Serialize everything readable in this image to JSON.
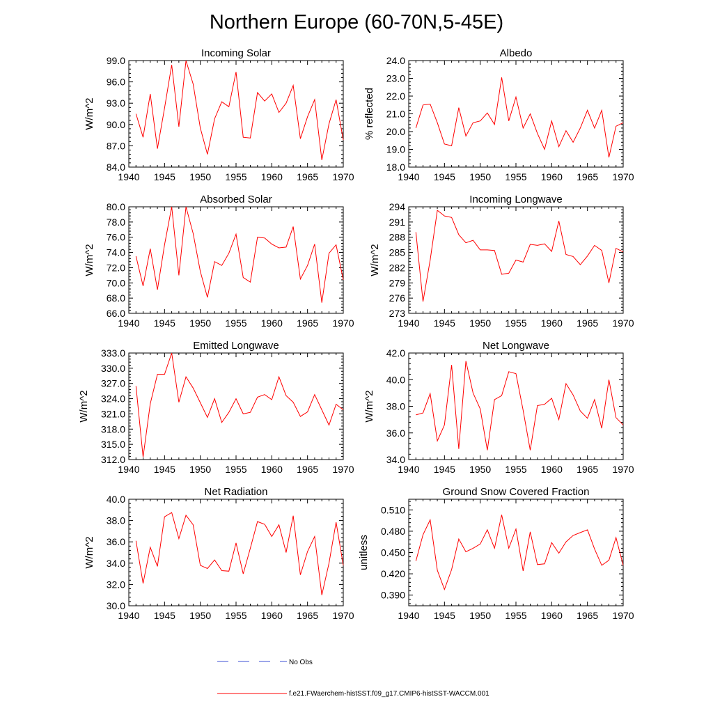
{
  "figure_title": "Northern Europe (60-70N,5-45E)",
  "legend": {
    "no_obs_label": "No Obs",
    "no_obs_color": "#3b4fd6",
    "model_label": "f.e21.FWaerchem-histSST.f09_g17.CMIP6-histSST-WACCM.001",
    "model_color": "#ff0000"
  },
  "chart_data": [
    {
      "type": "line",
      "title": "Incoming Solar",
      "ylabel": "W/m^2",
      "xlabel": "",
      "xlim": [
        1940,
        1970
      ],
      "ylim": [
        84,
        99
      ],
      "x_ticks": [
        "1940",
        "1945",
        "1950",
        "1955",
        "1960",
        "1965",
        "1970"
      ],
      "y_ticks": [
        "84.0",
        "87.0",
        "90.0",
        "93.0",
        "96.0",
        "99.0"
      ],
      "x": [
        1941,
        1942,
        1943,
        1944,
        1945,
        1946,
        1947,
        1948,
        1949,
        1950,
        1951,
        1952,
        1953,
        1954,
        1955,
        1956,
        1957,
        1958,
        1959,
        1960,
        1961,
        1962,
        1963,
        1964,
        1965,
        1966,
        1967,
        1968,
        1969,
        1970
      ],
      "series": [
        {
          "values": [
            91.5,
            88.2,
            94.3,
            86.6,
            92.3,
            98.4,
            89.7,
            99.0,
            95.7,
            89.5,
            85.8,
            90.8,
            93.2,
            92.5,
            97.4,
            88.2,
            88.1,
            94.5,
            93.3,
            94.3,
            91.7,
            93.0,
            95.5,
            88.0,
            91.1,
            93.5,
            85.0,
            90.1,
            93.5,
            87.8
          ]
        }
      ]
    },
    {
      "type": "line",
      "title": "Albedo",
      "ylabel": "% reflected",
      "xlabel": "",
      "xlim": [
        1940,
        1970
      ],
      "ylim": [
        18,
        24
      ],
      "x_ticks": [
        "1940",
        "1945",
        "1950",
        "1955",
        "1960",
        "1965",
        "1970"
      ],
      "y_ticks": [
        "18.0",
        "19.0",
        "20.0",
        "21.0",
        "22.0",
        "23.0",
        "24.0"
      ],
      "x": [
        1941,
        1942,
        1943,
        1944,
        1945,
        1946,
        1947,
        1948,
        1949,
        1950,
        1951,
        1952,
        1953,
        1954,
        1955,
        1956,
        1957,
        1958,
        1959,
        1960,
        1961,
        1962,
        1963,
        1964,
        1965,
        1966,
        1967,
        1968,
        1969,
        1970
      ],
      "series": [
        {
          "values": [
            20.2,
            21.5,
            21.55,
            20.5,
            19.3,
            19.2,
            21.35,
            19.75,
            20.5,
            20.6,
            21.05,
            20.4,
            23.05,
            20.6,
            21.95,
            20.2,
            21.0,
            19.9,
            19.0,
            20.6,
            19.15,
            20.05,
            19.4,
            20.2,
            21.2,
            20.2,
            21.2,
            18.55,
            20.3,
            20.5
          ]
        }
      ]
    },
    {
      "type": "line",
      "title": "Absorbed Solar",
      "ylabel": "W/m^2",
      "xlabel": "",
      "xlim": [
        1940,
        1970
      ],
      "ylim": [
        66,
        80
      ],
      "x_ticks": [
        "1940",
        "1945",
        "1950",
        "1955",
        "1960",
        "1965",
        "1970"
      ],
      "y_ticks": [
        "66.0",
        "68.0",
        "70.0",
        "72.0",
        "74.0",
        "76.0",
        "78.0",
        "80.0"
      ],
      "x": [
        1941,
        1942,
        1943,
        1944,
        1945,
        1946,
        1947,
        1948,
        1949,
        1950,
        1951,
        1952,
        1953,
        1954,
        1955,
        1956,
        1957,
        1958,
        1959,
        1960,
        1961,
        1962,
        1963,
        1964,
        1965,
        1966,
        1967,
        1968,
        1969,
        1970
      ],
      "series": [
        {
          "values": [
            73.5,
            69.6,
            74.5,
            69.1,
            75.0,
            80.0,
            71.0,
            80.0,
            76.5,
            71.5,
            68.1,
            72.8,
            72.3,
            73.9,
            76.4,
            70.7,
            70.1,
            76.0,
            75.9,
            75.1,
            74.6,
            74.7,
            77.4,
            70.5,
            72.3,
            75.1,
            67.4,
            73.9,
            75.0,
            70.4
          ]
        }
      ]
    },
    {
      "type": "line",
      "title": "Incoming Longwave",
      "ylabel": "W/m^2",
      "xlabel": "",
      "xlim": [
        1940,
        1970
      ],
      "ylim": [
        273,
        294
      ],
      "x_ticks": [
        "1940",
        "1945",
        "1950",
        "1955",
        "1960",
        "1965",
        "1970"
      ],
      "y_ticks": [
        "273",
        "276",
        "279",
        "282",
        "285",
        "288",
        "291",
        "294"
      ],
      "x": [
        1941,
        1942,
        1943,
        1944,
        1945,
        1946,
        1947,
        1948,
        1949,
        1950,
        1951,
        1952,
        1953,
        1954,
        1955,
        1956,
        1957,
        1958,
        1959,
        1960,
        1961,
        1962,
        1963,
        1964,
        1965,
        1966,
        1967,
        1968,
        1969,
        1970
      ],
      "series": [
        {
          "values": [
            289.0,
            275.3,
            283.5,
            293.3,
            292.2,
            291.9,
            288.5,
            286.9,
            287.4,
            285.5,
            285.5,
            285.4,
            280.7,
            280.9,
            283.5,
            283.1,
            286.6,
            286.4,
            286.7,
            285.2,
            291.2,
            284.6,
            284.2,
            282.6,
            284.3,
            286.4,
            285.4,
            279.0,
            285.8,
            285.1
          ]
        }
      ]
    },
    {
      "type": "line",
      "title": "Emitted Longwave",
      "ylabel": "W/m^2",
      "xlabel": "",
      "xlim": [
        1940,
        1970
      ],
      "ylim": [
        312,
        333
      ],
      "x_ticks": [
        "1940",
        "1945",
        "1950",
        "1955",
        "1960",
        "1965",
        "1970"
      ],
      "y_ticks": [
        "312.0",
        "315.0",
        "318.0",
        "321.0",
        "324.0",
        "327.0",
        "330.0",
        "333.0"
      ],
      "x": [
        1941,
        1942,
        1943,
        1944,
        1945,
        1946,
        1947,
        1948,
        1949,
        1950,
        1951,
        1952,
        1953,
        1954,
        1955,
        1956,
        1957,
        1958,
        1959,
        1960,
        1961,
        1962,
        1963,
        1964,
        1965,
        1966,
        1967,
        1968,
        1969,
        1970
      ],
      "series": [
        {
          "values": [
            326.5,
            312.5,
            323.0,
            328.8,
            328.8,
            333.0,
            323.3,
            328.3,
            326.1,
            323.2,
            320.3,
            324.0,
            319.3,
            321.3,
            324.0,
            321.0,
            321.3,
            324.3,
            324.8,
            323.8,
            328.3,
            324.6,
            323.3,
            320.5,
            321.4,
            324.8,
            321.8,
            318.8,
            322.9,
            321.8
          ]
        }
      ]
    },
    {
      "type": "line",
      "title": "Net Longwave",
      "ylabel": "W/m^2",
      "xlabel": "",
      "xlim": [
        1940,
        1970
      ],
      "ylim": [
        34,
        42
      ],
      "x_ticks": [
        "1940",
        "1945",
        "1950",
        "1955",
        "1960",
        "1965",
        "1970"
      ],
      "y_ticks": [
        "34.0",
        "36.0",
        "38.0",
        "40.0",
        "42.0"
      ],
      "x": [
        1941,
        1942,
        1943,
        1944,
        1945,
        1946,
        1947,
        1948,
        1949,
        1950,
        1951,
        1952,
        1953,
        1954,
        1955,
        1956,
        1957,
        1958,
        1959,
        1960,
        1961,
        1962,
        1963,
        1964,
        1965,
        1966,
        1967,
        1968,
        1969,
        1970
      ],
      "series": [
        {
          "values": [
            37.35,
            37.5,
            38.95,
            35.4,
            36.6,
            41.1,
            34.8,
            41.4,
            39.0,
            37.8,
            34.7,
            38.5,
            38.8,
            40.6,
            40.45,
            37.7,
            34.7,
            38.05,
            38.15,
            38.6,
            37.0,
            39.7,
            38.85,
            37.65,
            37.1,
            38.5,
            36.35,
            40.0,
            37.15,
            36.6
          ]
        }
      ]
    },
    {
      "type": "line",
      "title": "Net Radiation",
      "ylabel": "W/m^2",
      "xlabel": "",
      "xlim": [
        1940,
        1970
      ],
      "ylim": [
        30,
        40
      ],
      "x_ticks": [
        "1940",
        "1945",
        "1950",
        "1955",
        "1960",
        "1965",
        "1970"
      ],
      "y_ticks": [
        "30.0",
        "32.0",
        "34.0",
        "36.0",
        "38.0",
        "40.0"
      ],
      "x": [
        1941,
        1942,
        1943,
        1944,
        1945,
        1946,
        1947,
        1948,
        1949,
        1950,
        1951,
        1952,
        1953,
        1954,
        1955,
        1956,
        1957,
        1958,
        1959,
        1960,
        1961,
        1962,
        1963,
        1964,
        1965,
        1966,
        1967,
        1968,
        1969,
        1970
      ],
      "series": [
        {
          "values": [
            36.1,
            32.1,
            35.5,
            33.7,
            38.35,
            38.75,
            36.3,
            38.5,
            37.6,
            33.8,
            33.5,
            34.3,
            33.3,
            33.25,
            35.9,
            33.0,
            35.4,
            37.9,
            37.65,
            36.5,
            37.6,
            35.0,
            38.45,
            32.9,
            35.1,
            36.5,
            31.0,
            34.0,
            37.85,
            33.8
          ]
        }
      ]
    },
    {
      "type": "line",
      "title": "Ground Snow Covered Fraction",
      "ylabel": "unitless",
      "xlabel": "",
      "xlim": [
        1940,
        1970
      ],
      "ylim": [
        0.375,
        0.525
      ],
      "x_ticks": [
        "1940",
        "1945",
        "1950",
        "1955",
        "1960",
        "1965",
        "1970"
      ],
      "y_ticks": [
        "0.390",
        "0.420",
        "0.450",
        "0.480",
        "0.510"
      ],
      "x": [
        1941,
        1942,
        1943,
        1944,
        1945,
        1946,
        1947,
        1948,
        1949,
        1950,
        1951,
        1952,
        1953,
        1954,
        1955,
        1956,
        1957,
        1958,
        1959,
        1960,
        1961,
        1962,
        1963,
        1964,
        1965,
        1966,
        1967,
        1968,
        1969,
        1970
      ],
      "series": [
        {
          "values": [
            0.438,
            0.475,
            0.496,
            0.425,
            0.398,
            0.426,
            0.469,
            0.451,
            0.456,
            0.462,
            0.482,
            0.456,
            0.503,
            0.456,
            0.483,
            0.424,
            0.479,
            0.433,
            0.434,
            0.464,
            0.449,
            0.465,
            0.474,
            0.478,
            0.482,
            0.455,
            0.432,
            0.439,
            0.471,
            0.432
          ]
        }
      ]
    }
  ]
}
